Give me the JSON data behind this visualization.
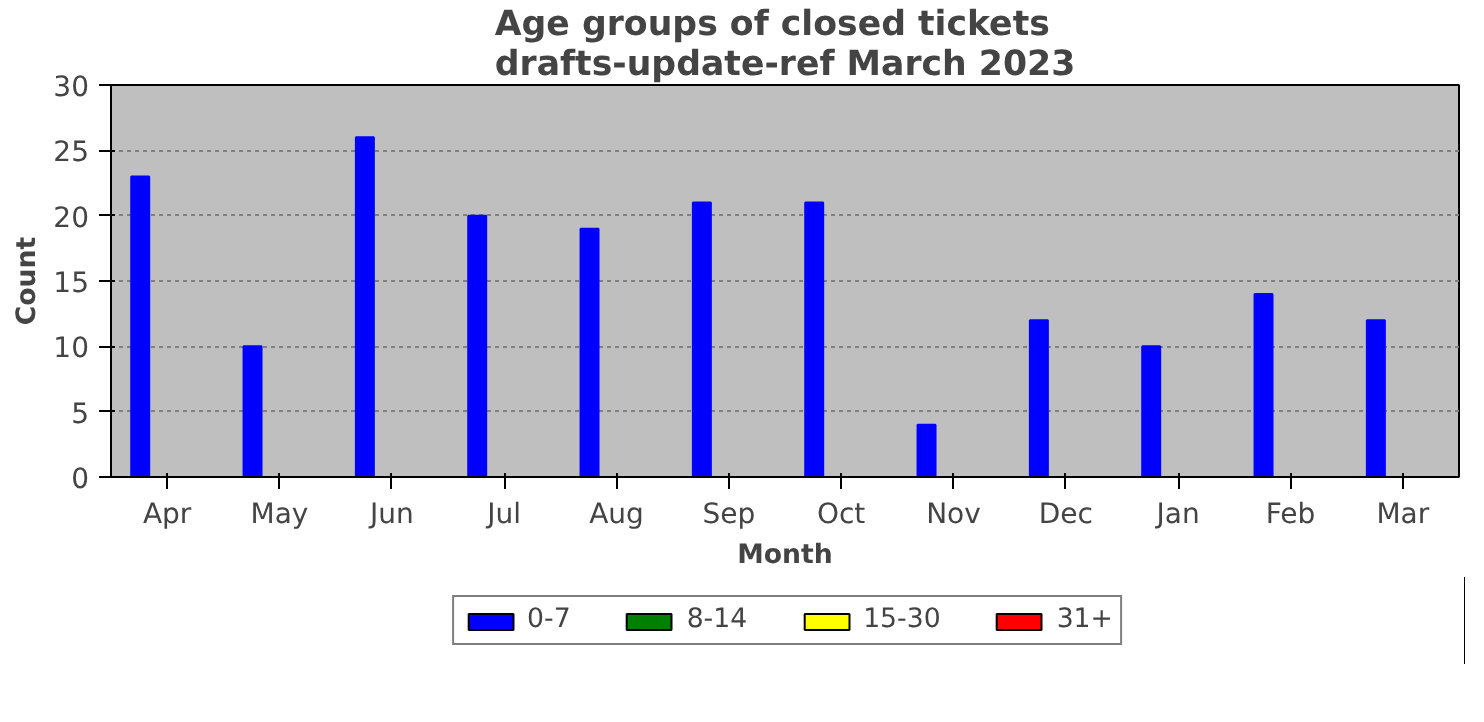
{
  "chart_data": {
    "type": "bar",
    "title": "Age groups of closed tickets\ndrafts-update-ref March 2023",
    "xlabel": "Month",
    "ylabel": "Count",
    "categories": [
      "Apr",
      "May",
      "Jun",
      "Jul",
      "Aug",
      "Sep",
      "Oct",
      "Nov",
      "Dec",
      "Jan",
      "Feb",
      "Mar"
    ],
    "series": [
      {
        "name": "0-7",
        "color": "#0000ff",
        "values": [
          23,
          10,
          26,
          20,
          19,
          21,
          21,
          4,
          12,
          10,
          14,
          12
        ]
      },
      {
        "name": "8-14",
        "color": "#008000",
        "values": [
          0,
          0,
          0,
          0,
          0,
          0,
          0,
          0,
          0,
          0,
          0,
          0
        ]
      },
      {
        "name": "15-30",
        "color": "#ffff00",
        "values": [
          0,
          0,
          0,
          0,
          0,
          0,
          0,
          0,
          0,
          0,
          0,
          0
        ]
      },
      {
        "name": "31+",
        "color": "#ff0000",
        "values": [
          0,
          0,
          0,
          0,
          0,
          0,
          0,
          0,
          0,
          0,
          0,
          0
        ]
      }
    ],
    "ylim": [
      0,
      30
    ],
    "yticks": [
      0,
      5,
      10,
      15,
      20,
      25,
      30
    ],
    "grid": "y",
    "legend": "bottom"
  }
}
